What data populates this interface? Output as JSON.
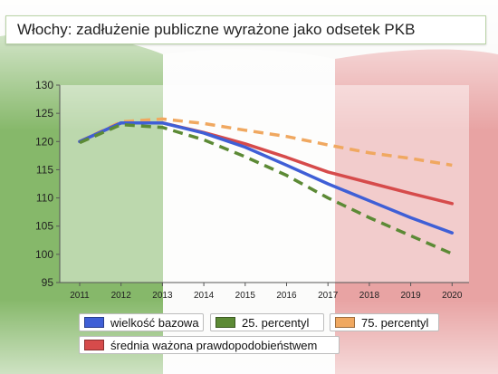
{
  "title": "Włochy: zadłużenie publiczne wyrażone jako odsetek PKB",
  "colors": {
    "flag_green": "#86b86a",
    "flag_red": "#e8a3a3",
    "title_border": "#b9d3a6"
  },
  "chart_data": {
    "type": "line",
    "title": "Włochy: zadłużenie publiczne wyrażone jako odsetek PKB",
    "xlabel": "",
    "ylabel": "",
    "x": [
      2011,
      2012,
      2013,
      2014,
      2015,
      2016,
      2017,
      2018,
      2019,
      2020
    ],
    "ylim": [
      95,
      130
    ],
    "yticks": [
      95,
      100,
      105,
      110,
      115,
      120,
      125,
      130
    ],
    "grid": false,
    "legend_position": "bottom",
    "series": [
      {
        "name": "wielkość bazowa",
        "color": "#3f5fd6",
        "dashed": false,
        "values": [
          120,
          123.3,
          123.3,
          121.5,
          119,
          115.8,
          112.5,
          109.5,
          106.5,
          103.8
        ]
      },
      {
        "name": "25. percentyl",
        "color": "#5c8a35",
        "dashed": true,
        "values": [
          119.8,
          123,
          122.5,
          120.3,
          117.3,
          114,
          110,
          106.5,
          103.3,
          100.1
        ]
      },
      {
        "name": "75. percentyl",
        "color": "#f0a860",
        "dashed": true,
        "values": [
          120,
          123.5,
          124,
          123.2,
          122,
          120.9,
          119.4,
          118,
          117,
          115.8
        ]
      },
      {
        "name": "średnia ważona prawdopodobieństwem",
        "color": "#d64b4b",
        "dashed": false,
        "values": [
          120,
          123.3,
          123.3,
          121.6,
          119.6,
          117.2,
          114.6,
          112.7,
          110.8,
          109
        ]
      }
    ]
  }
}
